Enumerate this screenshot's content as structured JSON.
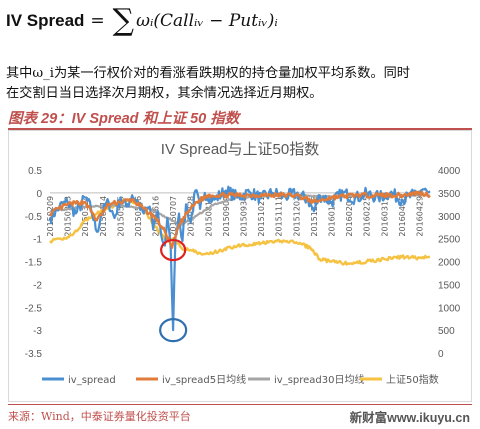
{
  "formula": {
    "lhs": "IV Spread",
    "equals": "=",
    "sigma": "∑",
    "rhs": "ωᵢ(Callᵢᵥ − Putᵢᵥ)ᵢ"
  },
  "description": {
    "line1": "其中ω_i为某一行权价对的看涨看跌期权的持仓量加权平均系数。同时",
    "line2": "在交割日当日选择次月期权，其余情况选择近月期权。"
  },
  "figure_title": "图表 29：IV Spread 和上证 50 指数",
  "source": "来源：Wind，中泰证券量化投资平台",
  "watermark": "新财富www.ikuyu.cn",
  "colors": {
    "accent": "#c0504d",
    "iv_spread": "#4a8fd1",
    "ma5": "#e07b39",
    "ma30": "#a5a5a5",
    "sz50": "#f5c242"
  },
  "chart_data": {
    "type": "line",
    "title": "IV Spread与上证50指数",
    "y_left": {
      "min": -3.5,
      "max": 0.5,
      "ticks": [
        "0.5",
        "0",
        "-0.5",
        "-1",
        "-1.5",
        "-2",
        "-2.5",
        "-3",
        "-3.5"
      ]
    },
    "y_right": {
      "min": 0,
      "max": 4000,
      "ticks": [
        "4000",
        "3500",
        "3000",
        "2500",
        "2000",
        "1500",
        "1000",
        "500",
        "0"
      ]
    },
    "x_tick_labels": [
      "20150209",
      "20150303",
      "20150324",
      "20150414",
      "20150505",
      "20150526",
      "20150616",
      "20150707",
      "20150728",
      "20150818",
      "20150909",
      "20150930",
      "20151021",
      "20151111",
      "20151202",
      "20151223",
      "20160114",
      "20160204",
      "20160225",
      "20160317",
      "20160408",
      "20160429"
    ],
    "x_label_date_indices": [
      0,
      15,
      30,
      45,
      60,
      75,
      90,
      105,
      120,
      135,
      150,
      165,
      180,
      195,
      210,
      225,
      240,
      255,
      270,
      285,
      300,
      315
    ],
    "n_days": 325,
    "legend": [
      "iv_spread",
      "iv_spread5日均线",
      "iv_spread30日均线",
      "上证50指数"
    ],
    "legend_position": "bottom",
    "annotations": [
      "red circle around the iv_spread drop near -1.2",
      "blue circle around the iv_spread minimum near -3.0"
    ],
    "series": [
      {
        "name": "iv_spread",
        "axis": "left",
        "keypoints": [
          [
            0,
            -0.55
          ],
          [
            8,
            -0.3
          ],
          [
            15,
            -0.2
          ],
          [
            22,
            -0.45
          ],
          [
            30,
            -0.1
          ],
          [
            35,
            -0.35
          ],
          [
            40,
            -0.85
          ],
          [
            44,
            -0.45
          ],
          [
            50,
            -0.2
          ],
          [
            55,
            -0.55
          ],
          [
            60,
            -0.1
          ],
          [
            65,
            -0.3
          ],
          [
            70,
            -0.05
          ],
          [
            75,
            -0.2
          ],
          [
            80,
            -0.45
          ],
          [
            85,
            -0.3
          ],
          [
            88,
            -0.8
          ],
          [
            92,
            -0.4
          ],
          [
            95,
            -0.95
          ],
          [
            98,
            -1.15
          ],
          [
            100,
            -0.55
          ],
          [
            103,
            -1.25
          ],
          [
            105,
            -3.0
          ],
          [
            107,
            -0.95
          ],
          [
            110,
            -0.45
          ],
          [
            113,
            -1.05
          ],
          [
            116,
            -0.25
          ],
          [
            120,
            -0.65
          ],
          [
            124,
            0.05
          ],
          [
            128,
            -0.35
          ],
          [
            132,
            0.0
          ],
          [
            140,
            -0.15
          ],
          [
            150,
            0.05
          ],
          [
            160,
            -0.1
          ],
          [
            170,
            0.02
          ],
          [
            180,
            -0.12
          ],
          [
            190,
            0.0
          ],
          [
            200,
            -0.08
          ],
          [
            210,
            -0.02
          ],
          [
            220,
            -0.15
          ],
          [
            225,
            -0.4
          ],
          [
            230,
            -0.05
          ],
          [
            240,
            -0.2
          ],
          [
            250,
            0.0
          ],
          [
            260,
            -0.12
          ],
          [
            270,
            -0.02
          ],
          [
            280,
            -0.1
          ],
          [
            290,
            0.0
          ],
          [
            300,
            -0.15
          ],
          [
            310,
            -0.05
          ],
          [
            318,
            0.08
          ],
          [
            325,
            -0.1
          ]
        ]
      },
      {
        "name": "iv_spread5日均线",
        "axis": "left",
        "keypoints": [
          [
            0,
            -0.45
          ],
          [
            15,
            -0.25
          ],
          [
            30,
            -0.2
          ],
          [
            40,
            -0.6
          ],
          [
            50,
            -0.25
          ],
          [
            60,
            -0.2
          ],
          [
            70,
            -0.15
          ],
          [
            80,
            -0.35
          ],
          [
            90,
            -0.55
          ],
          [
            98,
            -0.85
          ],
          [
            104,
            -1.2
          ],
          [
            110,
            -0.7
          ],
          [
            118,
            -0.4
          ],
          [
            125,
            -0.2
          ],
          [
            135,
            -0.05
          ],
          [
            150,
            -0.05
          ],
          [
            170,
            -0.05
          ],
          [
            190,
            -0.05
          ],
          [
            210,
            -0.05
          ],
          [
            225,
            -0.2
          ],
          [
            240,
            -0.1
          ],
          [
            260,
            -0.05
          ],
          [
            280,
            -0.05
          ],
          [
            300,
            -0.05
          ],
          [
            315,
            0.0
          ],
          [
            325,
            -0.05
          ]
        ]
      },
      {
        "name": "iv_spread30日均线",
        "axis": "left",
        "keypoints": [
          [
            0,
            -0.4
          ],
          [
            30,
            -0.3
          ],
          [
            60,
            -0.28
          ],
          [
            85,
            -0.35
          ],
          [
            100,
            -0.55
          ],
          [
            112,
            -0.7
          ],
          [
            125,
            -0.5
          ],
          [
            140,
            -0.25
          ],
          [
            160,
            -0.1
          ],
          [
            200,
            -0.05
          ],
          [
            240,
            -0.08
          ],
          [
            280,
            -0.05
          ],
          [
            325,
            -0.05
          ]
        ]
      },
      {
        "name": "上证50指数",
        "axis": "right",
        "keypoints": [
          [
            0,
            2450
          ],
          [
            10,
            2480
          ],
          [
            20,
            2600
          ],
          [
            30,
            2900
          ],
          [
            40,
            3050
          ],
          [
            50,
            3150
          ],
          [
            60,
            3300
          ],
          [
            68,
            3350
          ],
          [
            78,
            3200
          ],
          [
            85,
            2950
          ],
          [
            90,
            2750
          ],
          [
            95,
            2600
          ],
          [
            100,
            2450
          ],
          [
            105,
            2500
          ],
          [
            112,
            2300
          ],
          [
            120,
            2250
          ],
          [
            130,
            2150
          ],
          [
            140,
            2200
          ],
          [
            160,
            2350
          ],
          [
            180,
            2400
          ],
          [
            200,
            2450
          ],
          [
            210,
            2420
          ],
          [
            222,
            2300
          ],
          [
            230,
            2050
          ],
          [
            240,
            2000
          ],
          [
            255,
            1950
          ],
          [
            270,
            2000
          ],
          [
            285,
            2050
          ],
          [
            300,
            2100
          ],
          [
            315,
            2080
          ],
          [
            325,
            2100
          ]
        ]
      }
    ]
  }
}
